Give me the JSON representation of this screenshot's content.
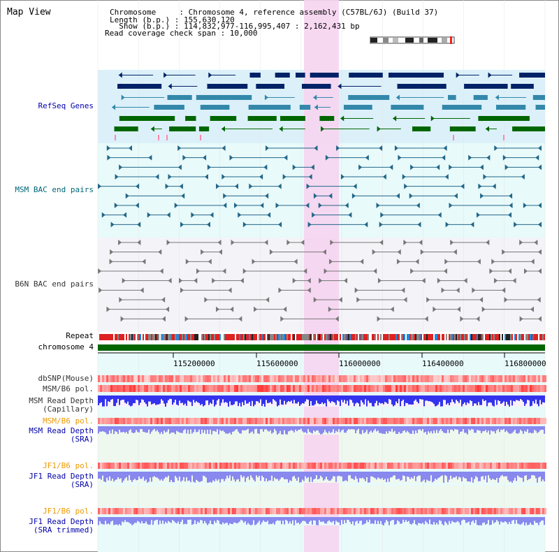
{
  "view_title": "Map View",
  "info": {
    "line1": "Chromosome     : Chromosome 4, reference assembly (C57BL/6J) (Build 37)",
    "line2": "Length (b.p.) : 155,630,120",
    "line3": "  Show (b.p.) : 114,832,977-116,995,407 : 2,162,431 bp",
    "line4": "Read coverage check span : 10,000"
  },
  "tracks": {
    "refseq": "RefSeq Genes",
    "msm_bac": "MSM BAC end pairs",
    "b6n_bac": "B6N BAC end pairs",
    "repeat": "Repeat",
    "chromosome": "chromosome 4",
    "dbsnp": "dbSNP(Mouse)",
    "msm_b6_pol": "MSM/B6 pol.",
    "msm_read_cap": "MSM Read Depth\n(Capillary)",
    "msm_b6_pol2": "MSM/B6 pol.",
    "msm_read_sra": "MSM Read Depth\n(SRA)",
    "jf1_b6_pol": "JF1/B6 pol.",
    "jf1_read_sra": "JF1 Read Depth\n(SRA)",
    "jf1_b6_pol2": "JF1/B6 pol.",
    "jf1_read_trim": "JF1 Read Depth\n(SRA trimmed)"
  },
  "axis_ticks": [
    "115200000",
    "115600000",
    "116000000",
    "116400000",
    "116800000"
  ],
  "colors": {
    "label_blue": "#0000aa",
    "label_teal": "#006677",
    "label_gray": "#333333",
    "label_orange": "#ee9900",
    "highlight": "#f6d4f0",
    "refseq_bg": "#dcf0fa",
    "msm_bg": "#e8fafa",
    "b6n_bg": "#f4f4f8",
    "chrom_green": "#006600",
    "depth_blue": "#3333ee",
    "depth_light": "#8888ee"
  },
  "ideogram": "chromosome-ideogram-icon"
}
